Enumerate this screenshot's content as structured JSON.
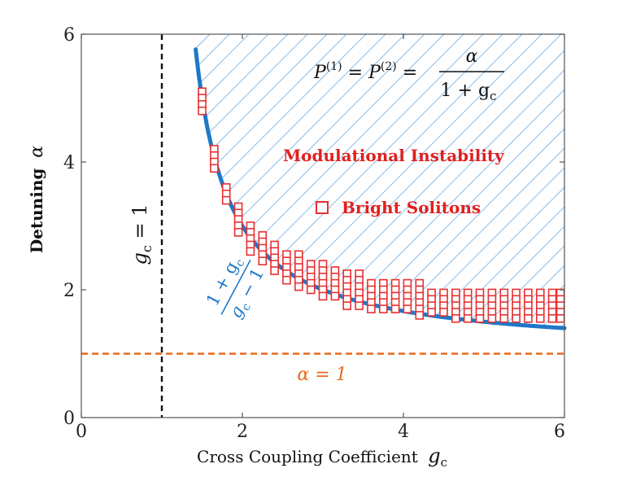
{
  "chart_data": {
    "type": "scatter",
    "title": "",
    "xlabel": "Cross Coupling Coefficient",
    "xlabel_symbol": "g",
    "xlabel_sub": "c",
    "ylabel": "Detuning",
    "ylabel_symbol": "α",
    "xlim": [
      0,
      6
    ],
    "ylim": [
      0,
      6
    ],
    "xticks": [
      0,
      2,
      4,
      6
    ],
    "yticks": [
      0,
      2,
      4,
      6
    ],
    "xtick_labels": [
      "0",
      "2",
      "4",
      "6"
    ],
    "ytick_labels": [
      "0",
      "2",
      "4",
      "6"
    ],
    "colors": {
      "curve": "#1e78c8",
      "hatch": "#8cbde6",
      "markers": "#e83030",
      "alpha_line": "#e86a1a",
      "gc_line": "#111111"
    },
    "curve": {
      "name": "(1+g_c)/(g_c-1)",
      "x_start": 1.42,
      "x_end": 6.0
    },
    "vertical_line": {
      "x": 1,
      "label": "g_c = 1",
      "label_main": "g",
      "label_sub": "c",
      "label_rest": " = 1"
    },
    "horizontal_line": {
      "y": 1,
      "label": "α = 1"
    },
    "region_label": "Modulational Instability",
    "legend": {
      "marker_label": "Bright Solitons"
    },
    "formula": {
      "lhs": "P(1) = P(2) =",
      "lhs_p1": "P",
      "lhs_sup1": "(1)",
      "eq1": " = ",
      "lhs_p2": "P",
      "lhs_sup2": "(2)",
      "eq2": " = ",
      "numerator": "α",
      "denominator": "1 + g",
      "denominator_sub": "c"
    },
    "curve_label": {
      "numerator": "1 + g",
      "numerator_sub": "c",
      "denominator": "g",
      "denominator_sub": "c",
      "denominator_rest": " − 1"
    },
    "bright_solitons": [
      [
        1.5,
        5.1
      ],
      [
        1.5,
        5.0
      ],
      [
        1.5,
        4.9
      ],
      [
        1.5,
        4.8
      ],
      [
        1.65,
        4.2
      ],
      [
        1.65,
        4.1
      ],
      [
        1.65,
        4.0
      ],
      [
        1.65,
        3.9
      ],
      [
        1.8,
        3.6
      ],
      [
        1.8,
        3.5
      ],
      [
        1.8,
        3.4
      ],
      [
        1.95,
        3.3
      ],
      [
        1.95,
        3.2
      ],
      [
        1.95,
        3.1
      ],
      [
        1.95,
        3.0
      ],
      [
        1.95,
        2.9
      ],
      [
        2.1,
        3.0
      ],
      [
        2.1,
        2.9
      ],
      [
        2.1,
        2.8
      ],
      [
        2.1,
        2.7
      ],
      [
        2.1,
        2.6
      ],
      [
        2.25,
        2.85
      ],
      [
        2.25,
        2.75
      ],
      [
        2.25,
        2.65
      ],
      [
        2.25,
        2.55
      ],
      [
        2.25,
        2.45
      ],
      [
        2.4,
        2.7
      ],
      [
        2.4,
        2.6
      ],
      [
        2.4,
        2.5
      ],
      [
        2.4,
        2.4
      ],
      [
        2.4,
        2.3
      ],
      [
        2.55,
        2.55
      ],
      [
        2.55,
        2.45
      ],
      [
        2.55,
        2.35
      ],
      [
        2.55,
        2.25
      ],
      [
        2.55,
        2.15
      ],
      [
        2.7,
        2.55
      ],
      [
        2.7,
        2.45
      ],
      [
        2.7,
        2.35
      ],
      [
        2.7,
        2.25
      ],
      [
        2.7,
        2.15
      ],
      [
        2.7,
        2.05
      ],
      [
        2.85,
        2.4
      ],
      [
        2.85,
        2.3
      ],
      [
        2.85,
        2.2
      ],
      [
        2.85,
        2.1
      ],
      [
        2.85,
        2.0
      ],
      [
        3.0,
        2.4
      ],
      [
        3.0,
        2.3
      ],
      [
        3.0,
        2.2
      ],
      [
        3.0,
        2.1
      ],
      [
        3.0,
        2.0
      ],
      [
        3.0,
        1.9
      ],
      [
        3.15,
        2.3
      ],
      [
        3.15,
        2.2
      ],
      [
        3.15,
        2.1
      ],
      [
        3.15,
        2.0
      ],
      [
        3.15,
        1.9
      ],
      [
        3.3,
        2.25
      ],
      [
        3.3,
        2.15
      ],
      [
        3.3,
        2.05
      ],
      [
        3.3,
        1.95
      ],
      [
        3.3,
        1.85
      ],
      [
        3.3,
        1.75
      ],
      [
        3.45,
        2.25
      ],
      [
        3.45,
        2.15
      ],
      [
        3.45,
        2.05
      ],
      [
        3.45,
        1.95
      ],
      [
        3.45,
        1.85
      ],
      [
        3.45,
        1.75
      ],
      [
        3.6,
        2.1
      ],
      [
        3.6,
        2.0
      ],
      [
        3.6,
        1.9
      ],
      [
        3.6,
        1.8
      ],
      [
        3.6,
        1.7
      ],
      [
        3.75,
        2.1
      ],
      [
        3.75,
        2.0
      ],
      [
        3.75,
        1.9
      ],
      [
        3.75,
        1.8
      ],
      [
        3.75,
        1.7
      ],
      [
        3.9,
        2.1
      ],
      [
        3.9,
        2.0
      ],
      [
        3.9,
        1.9
      ],
      [
        3.9,
        1.8
      ],
      [
        3.9,
        1.7
      ],
      [
        4.05,
        2.1
      ],
      [
        4.05,
        2.0
      ],
      [
        4.05,
        1.9
      ],
      [
        4.05,
        1.8
      ],
      [
        4.05,
        1.7
      ],
      [
        4.2,
        2.1
      ],
      [
        4.2,
        2.0
      ],
      [
        4.2,
        1.9
      ],
      [
        4.2,
        1.8
      ],
      [
        4.2,
        1.7
      ],
      [
        4.2,
        1.6
      ],
      [
        4.35,
        1.95
      ],
      [
        4.35,
        1.85
      ],
      [
        4.35,
        1.75
      ],
      [
        4.35,
        1.65
      ],
      [
        4.5,
        1.95
      ],
      [
        4.5,
        1.85
      ],
      [
        4.5,
        1.75
      ],
      [
        4.5,
        1.65
      ],
      [
        4.65,
        1.95
      ],
      [
        4.65,
        1.85
      ],
      [
        4.65,
        1.75
      ],
      [
        4.65,
        1.65
      ],
      [
        4.65,
        1.55
      ],
      [
        4.8,
        1.95
      ],
      [
        4.8,
        1.85
      ],
      [
        4.8,
        1.75
      ],
      [
        4.8,
        1.65
      ],
      [
        4.8,
        1.55
      ],
      [
        4.95,
        1.95
      ],
      [
        4.95,
        1.85
      ],
      [
        4.95,
        1.75
      ],
      [
        4.95,
        1.65
      ],
      [
        4.95,
        1.55
      ],
      [
        5.1,
        1.95
      ],
      [
        5.1,
        1.85
      ],
      [
        5.1,
        1.75
      ],
      [
        5.1,
        1.65
      ],
      [
        5.1,
        1.55
      ],
      [
        5.25,
        1.95
      ],
      [
        5.25,
        1.85
      ],
      [
        5.25,
        1.75
      ],
      [
        5.25,
        1.65
      ],
      [
        5.25,
        1.55
      ],
      [
        5.4,
        1.95
      ],
      [
        5.4,
        1.85
      ],
      [
        5.4,
        1.75
      ],
      [
        5.4,
        1.65
      ],
      [
        5.4,
        1.55
      ],
      [
        5.55,
        1.95
      ],
      [
        5.55,
        1.85
      ],
      [
        5.55,
        1.75
      ],
      [
        5.55,
        1.65
      ],
      [
        5.55,
        1.55
      ],
      [
        5.7,
        1.95
      ],
      [
        5.7,
        1.85
      ],
      [
        5.7,
        1.75
      ],
      [
        5.7,
        1.65
      ],
      [
        5.7,
        1.55
      ],
      [
        5.85,
        1.95
      ],
      [
        5.85,
        1.85
      ],
      [
        5.85,
        1.75
      ],
      [
        5.85,
        1.65
      ],
      [
        5.85,
        1.55
      ],
      [
        5.95,
        1.95
      ],
      [
        5.95,
        1.85
      ],
      [
        5.95,
        1.75
      ],
      [
        5.95,
        1.65
      ],
      [
        5.95,
        1.55
      ]
    ]
  }
}
